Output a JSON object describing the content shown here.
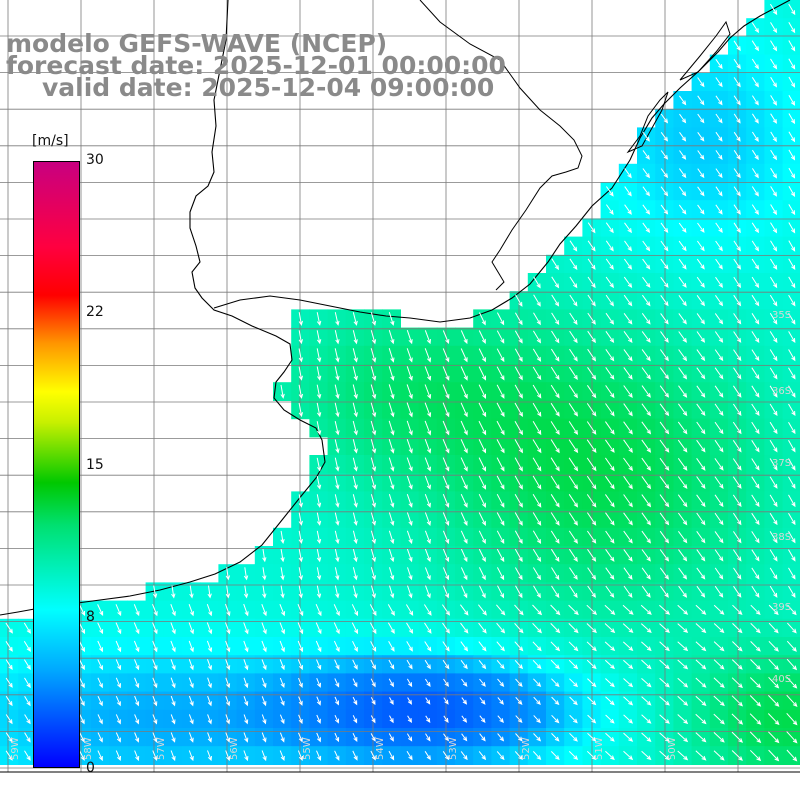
{
  "title": {
    "line1": "modelo GEFS-WAVE (NCEP)",
    "line2": "forecast date: 2025-12-01 00:00:00",
    "line3": "valid date: 2025-12-04 09:00:00"
  },
  "colorbar": {
    "unit": "[m/s]",
    "ticks": [
      "30",
      "22",
      "15",
      "8",
      "0"
    ],
    "colors": [
      "#0000ff",
      "#00a8ff",
      "#00ffff",
      "#00e070",
      "#00c800",
      "#c8f000",
      "#ffff00",
      "#ff9600",
      "#ff0000",
      "#ff0040",
      "#c80080"
    ]
  },
  "map": {
    "lat_labels": [
      "35S",
      "36S",
      "37S",
      "38S",
      "39S",
      "40S"
    ],
    "lon_labels": [
      "59W",
      "58W",
      "57W",
      "56W",
      "55W",
      "54W",
      "53W",
      "52W",
      "51W",
      "50W"
    ],
    "grid_color": "#7a7a7a",
    "coast_color": "#000000",
    "arrow_color": "#ffffff"
  }
}
